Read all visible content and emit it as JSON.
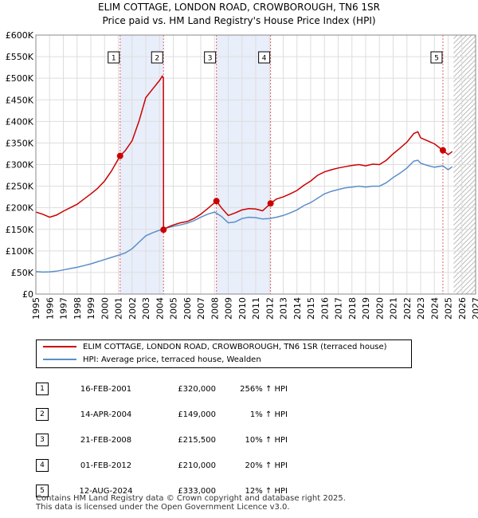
{
  "title_line1": "ELIM COTTAGE, LONDON ROAD, CROWBOROUGH, TN6 1SR",
  "title_line2": "Price paid vs. HM Land Registry's House Price Index (HPI)",
  "chart_data": {
    "type": "line",
    "xlim": [
      1995,
      2027
    ],
    "ylim": [
      0,
      600000
    ],
    "x_ticks": [
      "1995",
      "1996",
      "1997",
      "1998",
      "1999",
      "2000",
      "2001",
      "2002",
      "2003",
      "2004",
      "2005",
      "2006",
      "2007",
      "2008",
      "2009",
      "2010",
      "2011",
      "2012",
      "2013",
      "2014",
      "2015",
      "2016",
      "2017",
      "2018",
      "2019",
      "2020",
      "2021",
      "2022",
      "2023",
      "2024",
      "2025",
      "2026",
      "2027"
    ],
    "y_ticks": [
      {
        "value": 0,
        "label": "£0"
      },
      {
        "value": 50000,
        "label": "£50K"
      },
      {
        "value": 100000,
        "label": "£100K"
      },
      {
        "value": 150000,
        "label": "£150K"
      },
      {
        "value": 200000,
        "label": "£200K"
      },
      {
        "value": 250000,
        "label": "£250K"
      },
      {
        "value": 300000,
        "label": "£300K"
      },
      {
        "value": 350000,
        "label": "£350K"
      },
      {
        "value": 400000,
        "label": "£400K"
      },
      {
        "value": 450000,
        "label": "£450K"
      },
      {
        "value": 500000,
        "label": "£500K"
      },
      {
        "value": 550000,
        "label": "£550K"
      },
      {
        "value": 600000,
        "label": "£600K"
      }
    ],
    "shaded_periods": [
      [
        2001.13,
        2004.29
      ],
      [
        2008.14,
        2012.08
      ]
    ],
    "hatch_from": 2025.4,
    "series": [
      {
        "name": "ELIM COTTAGE, LONDON ROAD, CROWBOROUGH, TN6 1SR (terraced house)",
        "color": "#cc0000",
        "points": [
          [
            1995.0,
            190000
          ],
          [
            1995.5,
            185000
          ],
          [
            1996.0,
            178000
          ],
          [
            1996.5,
            183000
          ],
          [
            1997.0,
            192000
          ],
          [
            1997.5,
            200000
          ],
          [
            1998.0,
            208000
          ],
          [
            1998.5,
            220000
          ],
          [
            1999.0,
            232000
          ],
          [
            1999.5,
            245000
          ],
          [
            2000.0,
            262000
          ],
          [
            2000.5,
            285000
          ],
          [
            2001.13,
            320000
          ],
          [
            2001.5,
            332000
          ],
          [
            2002.0,
            355000
          ],
          [
            2002.5,
            400000
          ],
          [
            2003.0,
            455000
          ],
          [
            2003.5,
            475000
          ],
          [
            2004.0,
            495000
          ],
          [
            2004.2,
            505000
          ],
          [
            2004.28,
            500000
          ],
          [
            2004.29,
            149000
          ],
          [
            2004.6,
            155000
          ],
          [
            2005.0,
            160000
          ],
          [
            2005.5,
            165000
          ],
          [
            2006.0,
            168000
          ],
          [
            2006.5,
            175000
          ],
          [
            2007.0,
            185000
          ],
          [
            2007.5,
            198000
          ],
          [
            2008.14,
            215500
          ],
          [
            2008.5,
            200000
          ],
          [
            2009.0,
            182000
          ],
          [
            2009.5,
            188000
          ],
          [
            2010.0,
            195000
          ],
          [
            2010.5,
            198000
          ],
          [
            2011.0,
            197000
          ],
          [
            2011.5,
            193000
          ],
          [
            2012.08,
            210000
          ],
          [
            2012.5,
            220000
          ],
          [
            2013.0,
            225000
          ],
          [
            2013.5,
            232000
          ],
          [
            2014.0,
            240000
          ],
          [
            2014.5,
            252000
          ],
          [
            2015.0,
            262000
          ],
          [
            2015.5,
            275000
          ],
          [
            2016.0,
            283000
          ],
          [
            2016.5,
            288000
          ],
          [
            2017.0,
            292000
          ],
          [
            2017.5,
            295000
          ],
          [
            2018.0,
            298000
          ],
          [
            2018.5,
            300000
          ],
          [
            2019.0,
            297000
          ],
          [
            2019.5,
            301000
          ],
          [
            2020.0,
            300000
          ],
          [
            2020.5,
            310000
          ],
          [
            2021.0,
            325000
          ],
          [
            2021.5,
            338000
          ],
          [
            2022.0,
            352000
          ],
          [
            2022.5,
            372000
          ],
          [
            2022.8,
            376000
          ],
          [
            2023.0,
            362000
          ],
          [
            2023.5,
            355000
          ],
          [
            2024.0,
            348000
          ],
          [
            2024.62,
            333000
          ],
          [
            2025.0,
            323000
          ],
          [
            2025.3,
            330000
          ]
        ]
      },
      {
        "name": "HPI: Average price, terraced house, Wealden",
        "color": "#5b8fc9",
        "points": [
          [
            1995.0,
            52000
          ],
          [
            1995.5,
            51000
          ],
          [
            1996.0,
            51500
          ],
          [
            1996.5,
            53000
          ],
          [
            1997.0,
            56000
          ],
          [
            1997.5,
            59000
          ],
          [
            1998.0,
            62000
          ],
          [
            1998.5,
            66000
          ],
          [
            1999.0,
            70000
          ],
          [
            1999.5,
            75000
          ],
          [
            2000.0,
            80000
          ],
          [
            2000.5,
            85000
          ],
          [
            2001.0,
            90000
          ],
          [
            2001.5,
            95000
          ],
          [
            2002.0,
            105000
          ],
          [
            2002.5,
            120000
          ],
          [
            2003.0,
            135000
          ],
          [
            2003.5,
            142000
          ],
          [
            2004.0,
            148000
          ],
          [
            2004.5,
            153000
          ],
          [
            2005.0,
            157000
          ],
          [
            2005.5,
            160000
          ],
          [
            2006.0,
            164000
          ],
          [
            2006.5,
            170000
          ],
          [
            2007.0,
            178000
          ],
          [
            2007.5,
            185000
          ],
          [
            2008.0,
            190000
          ],
          [
            2008.5,
            180000
          ],
          [
            2009.0,
            165000
          ],
          [
            2009.5,
            167000
          ],
          [
            2010.0,
            175000
          ],
          [
            2010.5,
            178000
          ],
          [
            2011.0,
            177000
          ],
          [
            2011.5,
            174000
          ],
          [
            2012.0,
            175000
          ],
          [
            2012.5,
            178000
          ],
          [
            2013.0,
            182000
          ],
          [
            2013.5,
            188000
          ],
          [
            2014.0,
            195000
          ],
          [
            2014.5,
            205000
          ],
          [
            2015.0,
            212000
          ],
          [
            2015.5,
            222000
          ],
          [
            2016.0,
            232000
          ],
          [
            2016.5,
            238000
          ],
          [
            2017.0,
            242000
          ],
          [
            2017.5,
            246000
          ],
          [
            2018.0,
            248000
          ],
          [
            2018.5,
            250000
          ],
          [
            2019.0,
            248000
          ],
          [
            2019.5,
            250000
          ],
          [
            2020.0,
            250000
          ],
          [
            2020.5,
            258000
          ],
          [
            2021.0,
            270000
          ],
          [
            2021.5,
            280000
          ],
          [
            2022.0,
            292000
          ],
          [
            2022.5,
            308000
          ],
          [
            2022.8,
            310000
          ],
          [
            2023.0,
            303000
          ],
          [
            2023.5,
            298000
          ],
          [
            2024.0,
            294000
          ],
          [
            2024.62,
            297000
          ],
          [
            2025.0,
            288000
          ],
          [
            2025.3,
            295000
          ]
        ]
      }
    ],
    "sales": [
      {
        "n": "1",
        "year": 2001.13,
        "value": 320000
      },
      {
        "n": "2",
        "year": 2004.29,
        "value": 149000
      },
      {
        "n": "3",
        "year": 2008.14,
        "value": 215500
      },
      {
        "n": "4",
        "year": 2012.08,
        "value": 210000
      },
      {
        "n": "5",
        "year": 2024.62,
        "value": 333000
      }
    ]
  },
  "legend": {
    "property_label": "ELIM COTTAGE, LONDON ROAD, CROWBOROUGH, TN6 1SR (terraced house)",
    "hpi_label": "HPI: Average price, terraced house, Wealden",
    "property_color": "#cc0000",
    "hpi_color": "#5b8fc9"
  },
  "table": [
    {
      "n": "1",
      "date": "16-FEB-2001",
      "price": "£320,000",
      "hpi": "256% ↑ HPI"
    },
    {
      "n": "2",
      "date": "14-APR-2004",
      "price": "£149,000",
      "hpi": "1% ↑ HPI"
    },
    {
      "n": "3",
      "date": "21-FEB-2008",
      "price": "£215,500",
      "hpi": "10% ↑ HPI"
    },
    {
      "n": "4",
      "date": "01-FEB-2012",
      "price": "£210,000",
      "hpi": "20% ↑ HPI"
    },
    {
      "n": "5",
      "date": "12-AUG-2024",
      "price": "£333,000",
      "hpi": "12% ↑ HPI"
    }
  ],
  "footer_line1": "Contains HM Land Registry data © Crown copyright and database right 2025.",
  "footer_line2": "This data is licensed under the Open Government Licence v3.0."
}
